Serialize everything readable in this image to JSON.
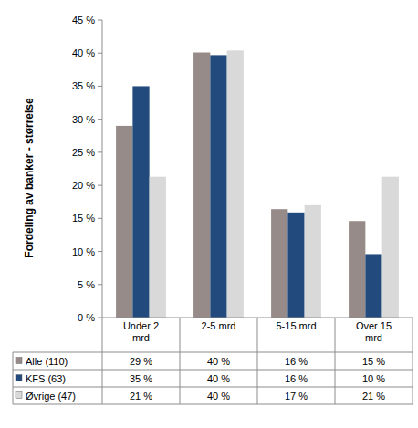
{
  "chart_data": {
    "type": "bar",
    "y_label": "Fordeling av banker - størrelse",
    "categories": [
      "Under 2 mrd",
      "2-5 mrd",
      "5-15 mrd",
      "Over 15 mrd"
    ],
    "series": [
      {
        "name": "Alle (110)",
        "color": "#968b89",
        "values": [
          29.0,
          40.1,
          16.4,
          14.6
        ],
        "value_labels": [
          "29 %",
          "40 %",
          "16 %",
          "15 %"
        ]
      },
      {
        "name": "KFS (63)",
        "color": "#224a7c",
        "values": [
          35.0,
          39.7,
          15.9,
          9.6
        ],
        "value_labels": [
          "35 %",
          "40 %",
          "16 %",
          "10 %"
        ]
      },
      {
        "name": "Øvrige (47)",
        "color": "#d9d9d9",
        "values": [
          21.3,
          40.4,
          17.0,
          21.3
        ],
        "value_labels": [
          "21 %",
          "40 %",
          "17 %",
          "21 %"
        ]
      }
    ],
    "ylim": [
      0,
      45
    ],
    "yticks": [
      {
        "value": 0,
        "label": "0 %"
      },
      {
        "value": 5,
        "label": "5 %"
      },
      {
        "value": 10,
        "label": "10 %"
      },
      {
        "value": 15,
        "label": "15 %"
      },
      {
        "value": 20,
        "label": "20 %"
      },
      {
        "value": 25,
        "label": "25 %"
      },
      {
        "value": 30,
        "label": "30 %"
      },
      {
        "value": 35,
        "label": "35 %"
      },
      {
        "value": 40,
        "label": "40 %"
      },
      {
        "value": 45,
        "label": "45 %"
      }
    ],
    "grid": false,
    "data_labels": true
  }
}
